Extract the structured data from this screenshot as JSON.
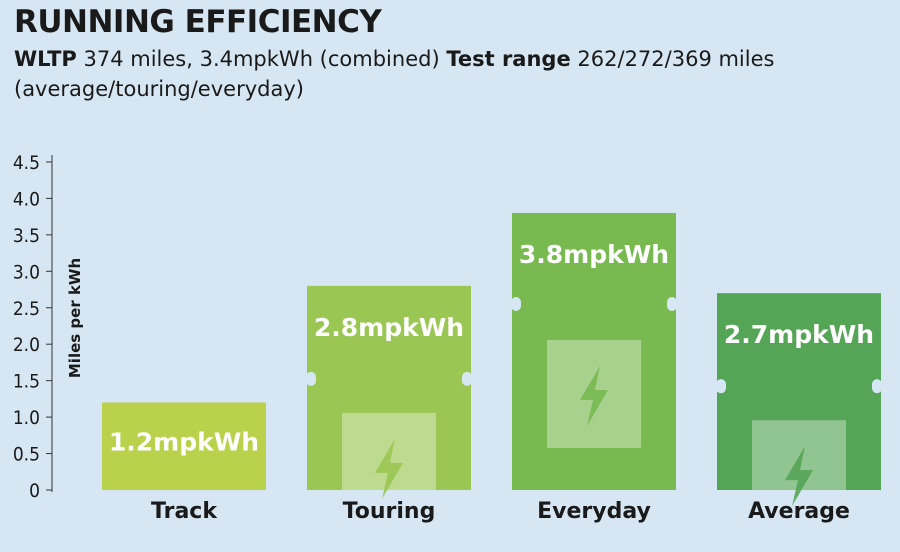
{
  "header": {
    "title": "RUNNING EFFICIENCY",
    "wltp_label": "WLTP",
    "wltp_text": "374 miles, 3.4mpkWh (combined)",
    "test_label": "Test range",
    "test_text": "262/272/369 miles (average/touring/everyday)"
  },
  "chart_data": {
    "type": "bar",
    "ylabel": "Miles per kWh",
    "ylim": [
      0,
      4.5
    ],
    "yticks": [
      "0",
      "0.5",
      "1.0",
      "1.5",
      "2.0",
      "2.5",
      "3.0",
      "3.5",
      "4.0",
      "4.5"
    ],
    "categories": [
      "Track",
      "Touring",
      "Everyday",
      "Average"
    ],
    "values": [
      1.2,
      2.8,
      3.8,
      2.7
    ],
    "value_labels": [
      "1.2mpkWh",
      "2.8mpkWh",
      "3.8mpkWh",
      "2.7mpkWh"
    ],
    "colors": [
      "#b9d14b",
      "#9ac653",
      "#78b950",
      "#55a556"
    ],
    "grid": false,
    "legend": "none",
    "icon": "battery-bolt-icon"
  }
}
